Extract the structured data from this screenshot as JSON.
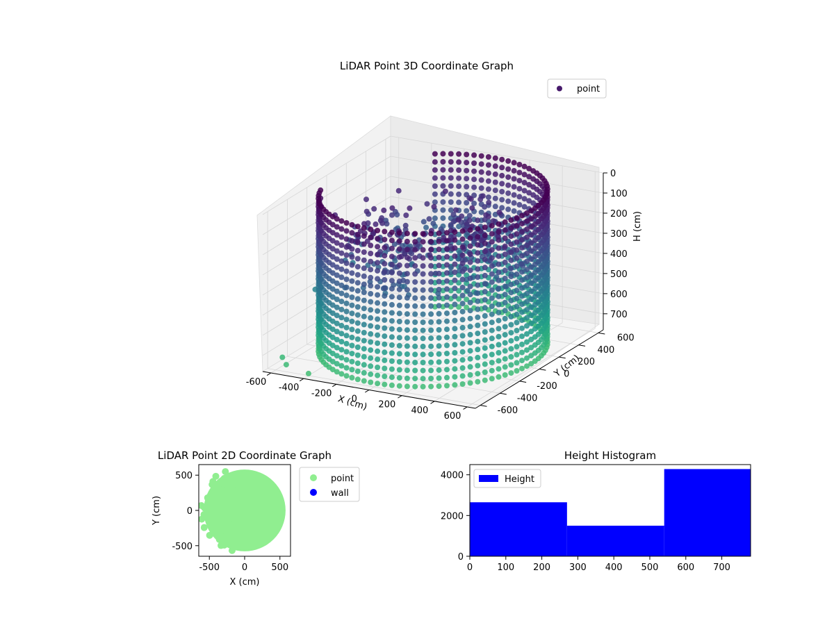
{
  "chart_data": [
    {
      "type": "scatter3d",
      "title": "LiDAR Point 3D Coordinate Graph",
      "xlabel": "X (cm)",
      "ylabel": "Y (cm)",
      "zlabel": "H (cm)",
      "xlim": [
        -650,
        650
      ],
      "ylim": [
        -650,
        650
      ],
      "zlim": [
        0,
        780
      ],
      "z_inverted": true,
      "xticks": [
        -600,
        -400,
        -200,
        0,
        200,
        400,
        600
      ],
      "yticks": [
        -600,
        -400,
        -200,
        0,
        200,
        400,
        600
      ],
      "zticks": [
        0,
        100,
        200,
        300,
        400,
        500,
        600,
        700
      ],
      "legend": {
        "entries": [
          "point"
        ],
        "placement": "upper-right"
      },
      "colormap": "viridis",
      "series": [
        {
          "name": "point",
          "wall": {
            "radius_cm": 600,
            "angle_start_deg": -160,
            "angle_end_deg": 120,
            "height_min": 0,
            "height_max": 780
          },
          "inner_points_height": [
            100,
            400
          ],
          "sample_points": [
            {
              "x": 100,
              "y": 400,
              "h": 150
            },
            {
              "x": 200,
              "y": 300,
              "h": 200
            },
            {
              "x": 0,
              "y": 350,
              "h": 300
            },
            {
              "x": -200,
              "y": 200,
              "h": 350
            },
            {
              "x": -400,
              "y": 300,
              "h": 250
            },
            {
              "x": -550,
              "y": 100,
              "h": 450
            },
            {
              "x": -600,
              "y": -200,
              "h": 500
            },
            {
              "x": -620,
              "y": -500,
              "h": 750
            },
            {
              "x": -560,
              "y": -560,
              "h": 760
            },
            {
              "x": -400,
              "y": -600,
              "h": 770
            }
          ]
        }
      ]
    },
    {
      "type": "scatter",
      "title": "LiDAR Point 2D Coordinate Graph",
      "xlabel": "X (cm)",
      "ylabel": "Y (cm)",
      "xlim": [
        -650,
        650
      ],
      "ylim": [
        -650,
        650
      ],
      "xticks": [
        -500,
        0,
        500
      ],
      "yticks": [
        -500,
        0,
        500
      ],
      "legend": {
        "entries": [
          "point",
          "wall"
        ],
        "placement": "outside-right"
      },
      "series": [
        {
          "name": "point",
          "color": "#90ee90",
          "shape": "disc",
          "radius_cm": 580,
          "center": [
            0,
            0
          ]
        },
        {
          "name": "wall",
          "color": "#0000ff",
          "points": []
        }
      ]
    },
    {
      "type": "bar",
      "title": "Height Histogram",
      "xlabel": "",
      "ylabel": "",
      "xlim": [
        0,
        780
      ],
      "ylim": [
        0,
        4500
      ],
      "xticks": [
        0,
        100,
        200,
        300,
        400,
        500,
        600,
        700
      ],
      "yticks": [
        0,
        2000,
        4000
      ],
      "legend": {
        "entries": [
          "Height"
        ],
        "placement": "upper-left"
      },
      "bins": [
        {
          "from": 0,
          "to": 270,
          "value": 2650
        },
        {
          "from": 270,
          "to": 540,
          "value": 1500
        },
        {
          "from": 540,
          "to": 780,
          "value": 4280
        }
      ],
      "color": "#0000ff"
    }
  ]
}
